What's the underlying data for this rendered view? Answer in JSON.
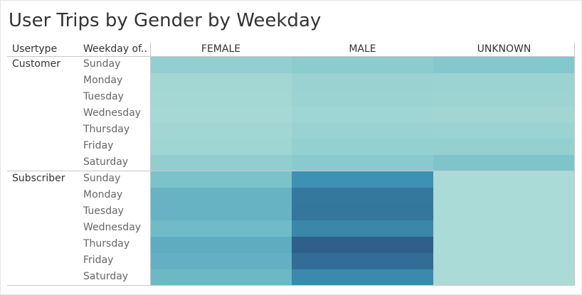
{
  "title": "User Trips by Gender by Weekday",
  "headers": {
    "usertype": "Usertype",
    "weekday": "Weekday of..",
    "columns": [
      "FEMALE",
      "MALE",
      "UNKNOWN"
    ]
  },
  "groups": [
    {
      "label": "Customer",
      "weekdays": [
        "Sunday",
        "Monday",
        "Tuesday",
        "Wednesday",
        "Thursday",
        "Friday",
        "Saturday"
      ]
    },
    {
      "label": "Subscriber",
      "weekdays": [
        "Sunday",
        "Monday",
        "Tuesday",
        "Wednesday",
        "Thursday",
        "Friday",
        "Saturday"
      ]
    }
  ],
  "chart_data": {
    "type": "heatmap",
    "title": "User Trips by Gender by Weekday",
    "columns": [
      "FEMALE",
      "MALE",
      "UNKNOWN"
    ],
    "rows": [
      {
        "usertype": "Customer",
        "weekday": "Sunday",
        "values": [
          0.22,
          0.26,
          0.3
        ]
      },
      {
        "usertype": "Customer",
        "weekday": "Monday",
        "values": [
          0.14,
          0.19,
          0.18
        ]
      },
      {
        "usertype": "Customer",
        "weekday": "Tuesday",
        "values": [
          0.13,
          0.18,
          0.17
        ]
      },
      {
        "usertype": "Customer",
        "weekday": "Wednesday",
        "values": [
          0.12,
          0.16,
          0.15
        ]
      },
      {
        "usertype": "Customer",
        "weekday": "Thursday",
        "values": [
          0.15,
          0.19,
          0.18
        ]
      },
      {
        "usertype": "Customer",
        "weekday": "Friday",
        "values": [
          0.16,
          0.21,
          0.21
        ]
      },
      {
        "usertype": "Customer",
        "weekday": "Saturday",
        "values": [
          0.23,
          0.27,
          0.33
        ]
      },
      {
        "usertype": "Subscriber",
        "weekday": "Sunday",
        "values": [
          0.35,
          0.68,
          0.1
        ]
      },
      {
        "usertype": "Subscriber",
        "weekday": "Monday",
        "values": [
          0.45,
          0.82,
          0.1
        ]
      },
      {
        "usertype": "Subscriber",
        "weekday": "Tuesday",
        "values": [
          0.45,
          0.83,
          0.1
        ]
      },
      {
        "usertype": "Subscriber",
        "weekday": "Wednesday",
        "values": [
          0.4,
          0.74,
          0.1
        ]
      },
      {
        "usertype": "Subscriber",
        "weekday": "Thursday",
        "values": [
          0.5,
          0.95,
          0.1
        ]
      },
      {
        "usertype": "Subscriber",
        "weekday": "Friday",
        "values": [
          0.47,
          0.88,
          0.1
        ]
      },
      {
        "usertype": "Subscriber",
        "weekday": "Saturday",
        "values": [
          0.42,
          0.72,
          0.1
        ]
      }
    ],
    "color_scale": [
      "#bde5da",
      "#7ec4cb",
      "#3e94b5",
      "#2b5784"
    ],
    "legend": "none",
    "grid": false
  }
}
